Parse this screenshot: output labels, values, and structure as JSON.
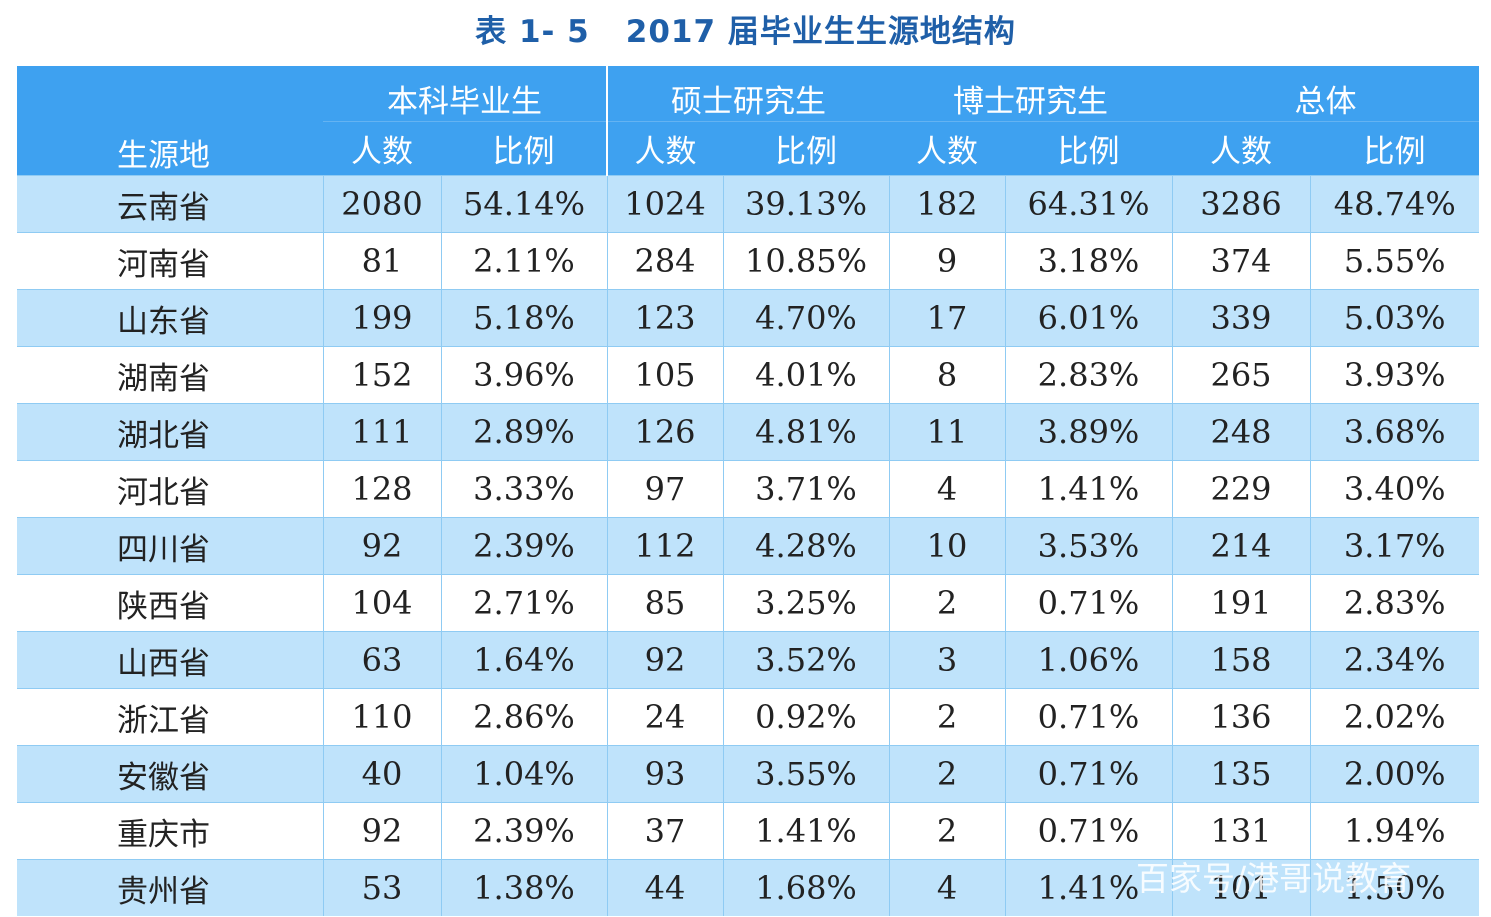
{
  "title": {
    "label": "表 1- 5",
    "text": "2017 届毕业生生源地结构"
  },
  "header": {
    "region": "生源地",
    "groups": [
      "本科毕业生",
      "硕士研究生",
      "博士研究生",
      "总体"
    ],
    "sub": [
      "人数",
      "比例"
    ]
  },
  "rows": [
    {
      "name": "云南省",
      "values": [
        "2080",
        "54.14%",
        "1024",
        "39.13%",
        "182",
        "64.31%",
        "3286",
        "48.74%"
      ]
    },
    {
      "name": "河南省",
      "values": [
        "81",
        "2.11%",
        "284",
        "10.85%",
        "9",
        "3.18%",
        "374",
        "5.55%"
      ]
    },
    {
      "name": "山东省",
      "values": [
        "199",
        "5.18%",
        "123",
        "4.70%",
        "17",
        "6.01%",
        "339",
        "5.03%"
      ]
    },
    {
      "name": "湖南省",
      "values": [
        "152",
        "3.96%",
        "105",
        "4.01%",
        "8",
        "2.83%",
        "265",
        "3.93%"
      ]
    },
    {
      "name": "湖北省",
      "values": [
        "111",
        "2.89%",
        "126",
        "4.81%",
        "11",
        "3.89%",
        "248",
        "3.68%"
      ]
    },
    {
      "name": "河北省",
      "values": [
        "128",
        "3.33%",
        "97",
        "3.71%",
        "4",
        "1.41%",
        "229",
        "3.40%"
      ]
    },
    {
      "name": "四川省",
      "values": [
        "92",
        "2.39%",
        "112",
        "4.28%",
        "10",
        "3.53%",
        "214",
        "3.17%"
      ]
    },
    {
      "name": "陕西省",
      "values": [
        "104",
        "2.71%",
        "85",
        "3.25%",
        "2",
        "0.71%",
        "191",
        "2.83%"
      ]
    },
    {
      "name": "山西省",
      "values": [
        "63",
        "1.64%",
        "92",
        "3.52%",
        "3",
        "1.06%",
        "158",
        "2.34%"
      ]
    },
    {
      "name": "浙江省",
      "values": [
        "110",
        "2.86%",
        "24",
        "0.92%",
        "2",
        "0.71%",
        "136",
        "2.02%"
      ]
    },
    {
      "name": "安徽省",
      "values": [
        "40",
        "1.04%",
        "93",
        "3.55%",
        "2",
        "0.71%",
        "135",
        "2.00%"
      ]
    },
    {
      "name": "重庆市",
      "values": [
        "92",
        "2.39%",
        "37",
        "1.41%",
        "2",
        "0.71%",
        "131",
        "1.94%"
      ]
    },
    {
      "name": "贵州省",
      "values": [
        "53",
        "1.38%",
        "44",
        "1.68%",
        "4",
        "1.41%",
        "101",
        "1.50%"
      ]
    }
  ],
  "watermark": "百家号/港哥说教育"
}
